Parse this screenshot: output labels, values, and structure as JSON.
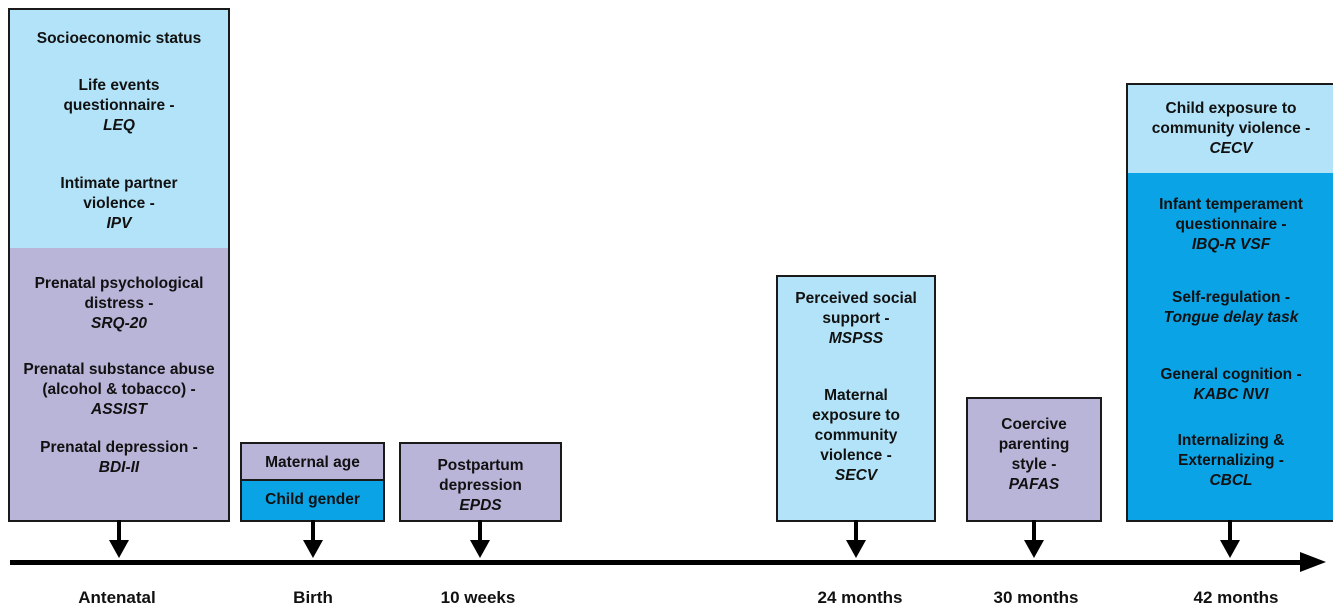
{
  "boxes": {
    "antenatal": {
      "socioeconomic": {
        "label": "Socioeconomic status"
      },
      "leq": {
        "label_l1": "Life events",
        "label_l2": "questionnaire -",
        "abbr": "LEQ"
      },
      "ipv": {
        "label_l1": "Intimate partner",
        "label_l2": "violence -",
        "abbr": "IPV"
      },
      "srq": {
        "label_l1": "Prenatal psychological",
        "label_l2": "distress -",
        "abbr": "SRQ-20"
      },
      "assist": {
        "label_l1": "Prenatal substance abuse",
        "label_l2": "(alcohol & tobacco) -",
        "abbr": "ASSIST"
      },
      "bdi": {
        "label_l1": "Prenatal depression -",
        "abbr": "BDI-II"
      }
    },
    "birth": {
      "maternal_age": "Maternal age",
      "child_gender": "Child gender"
    },
    "weeks10": {
      "label_l1": "Postpartum",
      "label_l2": "depression",
      "abbr": "EPDS"
    },
    "months24": {
      "mspss": {
        "label_l1": "Perceived social",
        "label_l2": "support -",
        "abbr": "MSPSS"
      },
      "secv": {
        "label_l1": "Maternal",
        "label_l2": "exposure to",
        "label_l3": "community",
        "label_l4": "violence -",
        "abbr": "SECV"
      }
    },
    "months30": {
      "label_l1": "Coercive",
      "label_l2": "parenting",
      "label_l3": "style -",
      "abbr": "PAFAS"
    },
    "months42": {
      "cecv": {
        "label_l1": "Child exposure to",
        "label_l2": "community violence -",
        "abbr": "CECV"
      },
      "ibq": {
        "label_l1": "Infant temperament",
        "label_l2": "questionnaire -",
        "abbr": "IBQ-R VSF"
      },
      "selfreg": {
        "label_l1": "Self-regulation -",
        "abbr": "Tongue delay task"
      },
      "kabc": {
        "label_l1": "General cognition -",
        "abbr": "KABC NVI"
      },
      "cbcl": {
        "label_l1": "Internalizing &",
        "label_l2": "Externalizing -",
        "abbr": "CBCL"
      }
    }
  },
  "timeline": {
    "antenatal": "Antenatal",
    "birth": "Birth",
    "weeks10": "10 weeks",
    "months24": "24 months",
    "months30": "30 months",
    "months42": "42 months"
  },
  "colors": {
    "light_blue": "#b3e3f8",
    "lavender": "#b9b5d9",
    "bright_blue": "#0aa3e6",
    "border": "#1a1a1a"
  }
}
